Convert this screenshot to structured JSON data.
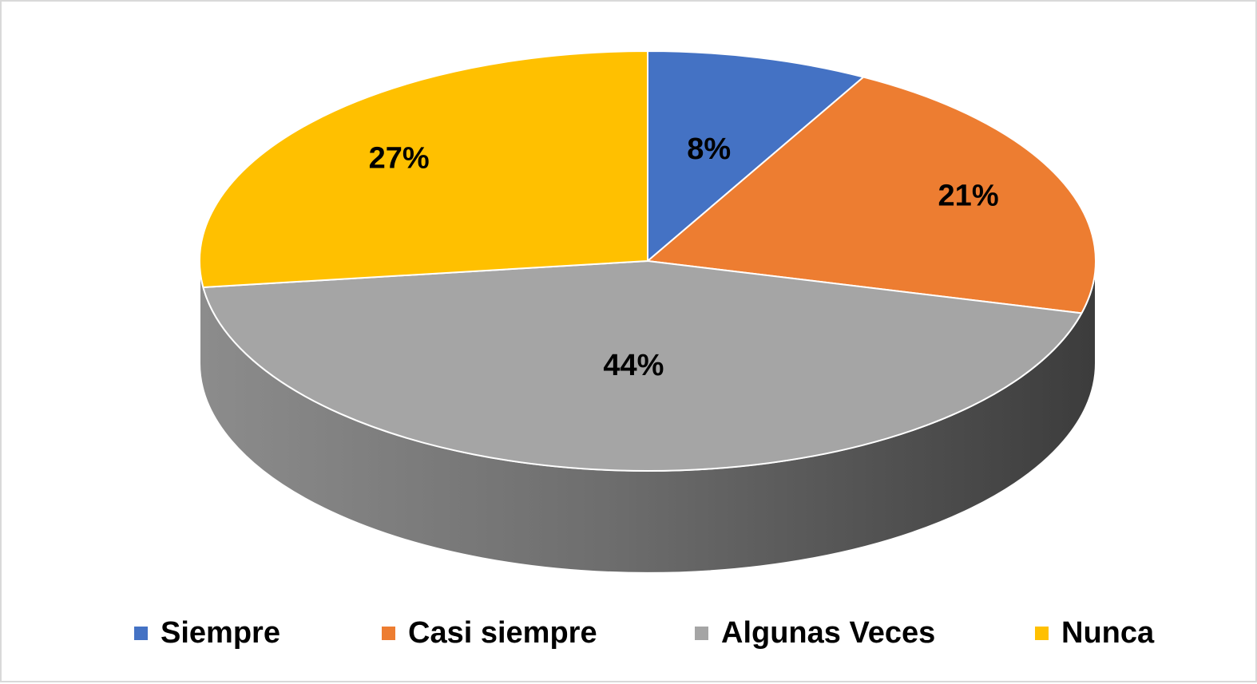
{
  "chart_data": {
    "type": "pie",
    "style": "3d",
    "categories": [
      "Siempre",
      "Casi siempre",
      "Algunas Veces",
      "Nunca"
    ],
    "values": [
      8,
      21,
      44,
      27
    ],
    "value_labels": [
      "8%",
      "21%",
      "44%",
      "27%"
    ],
    "colors": [
      "#4472c4",
      "#ed7d31",
      "#a5a5a5",
      "#ffc000"
    ],
    "legend_position": "bottom",
    "title": ""
  }
}
